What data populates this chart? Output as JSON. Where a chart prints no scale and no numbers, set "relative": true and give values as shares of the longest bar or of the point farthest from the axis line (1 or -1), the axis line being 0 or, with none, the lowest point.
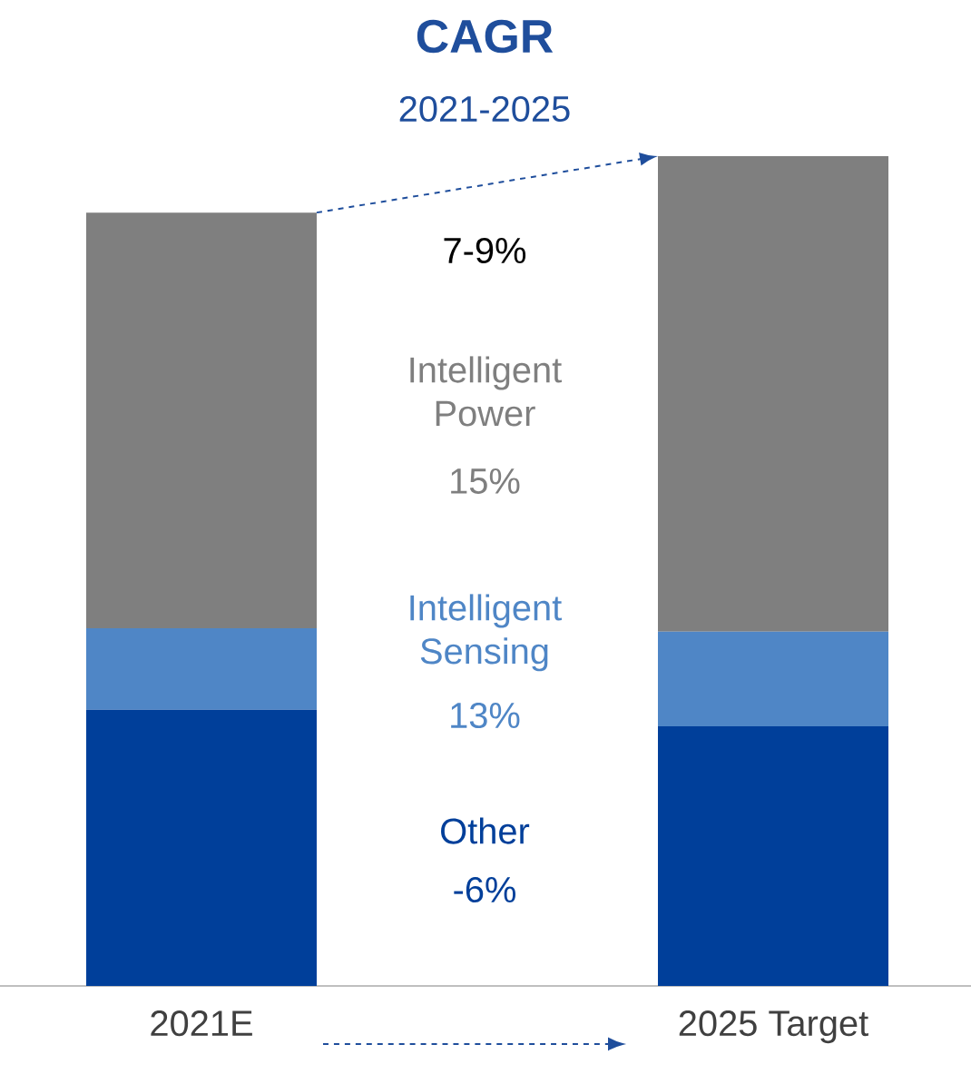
{
  "chart_data": {
    "type": "bar",
    "title": "CAGR",
    "subtitle": "2021-2025",
    "categories": [
      "2021E",
      "2025 Target"
    ],
    "stacked": true,
    "relative": true,
    "series": [
      {
        "name": "Other",
        "color": "#003f9a",
        "values": [
          0.333,
          0.313
        ]
      },
      {
        "name": "Intelligent Sensing",
        "color": "#4f86c6",
        "values": [
          0.098,
          0.114
        ]
      },
      {
        "name": "Intelligent Power",
        "color": "#7f7f7f",
        "values": [
          0.501,
          0.573
        ]
      }
    ],
    "annotations": [
      "7-9%",
      "-6%",
      "13%",
      "15%"
    ]
  }
}
